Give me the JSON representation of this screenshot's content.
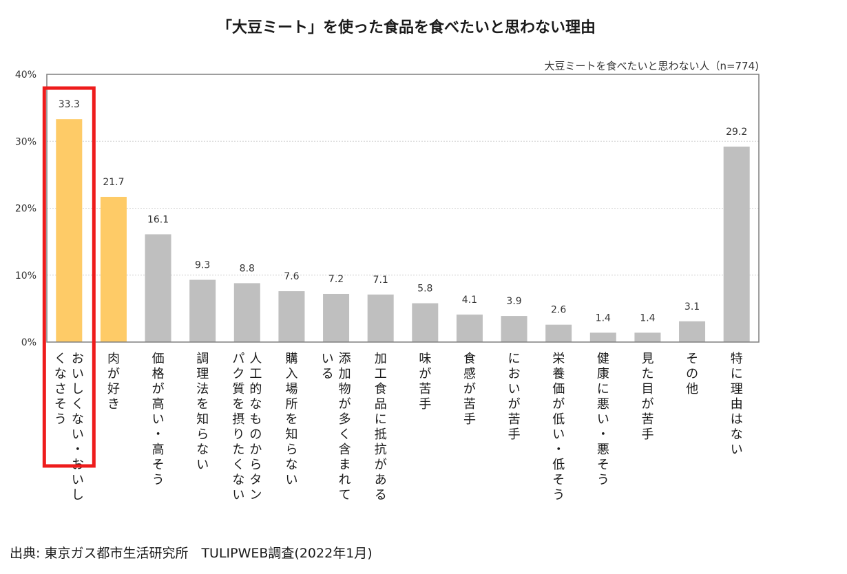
{
  "chart_data": {
    "type": "bar",
    "title": "「大豆ミート」を使った食品を食べたいと思わない理由",
    "subtitle": "大豆ミートを食べたいと思わない人（n=774)",
    "source": "出典: 東京ガス都市生活研究所　TULIPWEB調査(2022年1月)",
    "ylim": [
      0,
      40
    ],
    "y_ticks": [
      0,
      10,
      20,
      30,
      40
    ],
    "y_tick_labels": [
      "0%",
      "10%",
      "20%",
      "30%",
      "40%"
    ],
    "grid": true,
    "categories": [
      "おいしくない・おいしくなさそう",
      "肉が好き",
      "価格が高い・高そう",
      "調理法を知らない",
      "人工的なものからタンパク質を摂りたくない",
      "購入場所を知らない",
      "添加物が多く含まれている",
      "加工食品に抵抗がある",
      "味が苦手",
      "食感が苦手",
      "においが苦手",
      "栄養価が低い・低そう",
      "健康に悪い・悪そう",
      "見た目が苦手",
      "その他",
      "特に理由はない"
    ],
    "values": [
      33.3,
      21.7,
      16.1,
      9.3,
      8.8,
      7.6,
      7.2,
      7.1,
      5.8,
      4.1,
      3.9,
      2.6,
      1.4,
      1.4,
      3.1,
      29.2
    ],
    "value_labels": [
      "33.3",
      "21.7",
      "16.1",
      "9.3",
      "8.8",
      "7.6",
      "7.2",
      "7.1",
      "5.8",
      "4.1",
      "3.9",
      "2.6",
      "1.4",
      "1.4",
      "3.1",
      "29.2"
    ],
    "highlighted_count": 2,
    "highlight_box_index": 0,
    "colors": {
      "highlight_bar": "#fecb67",
      "bar": "#bfbfbf",
      "highlight_box": "#ee1c1c",
      "grid": "#d0d0d0",
      "axis": "#7f7f7f"
    }
  }
}
